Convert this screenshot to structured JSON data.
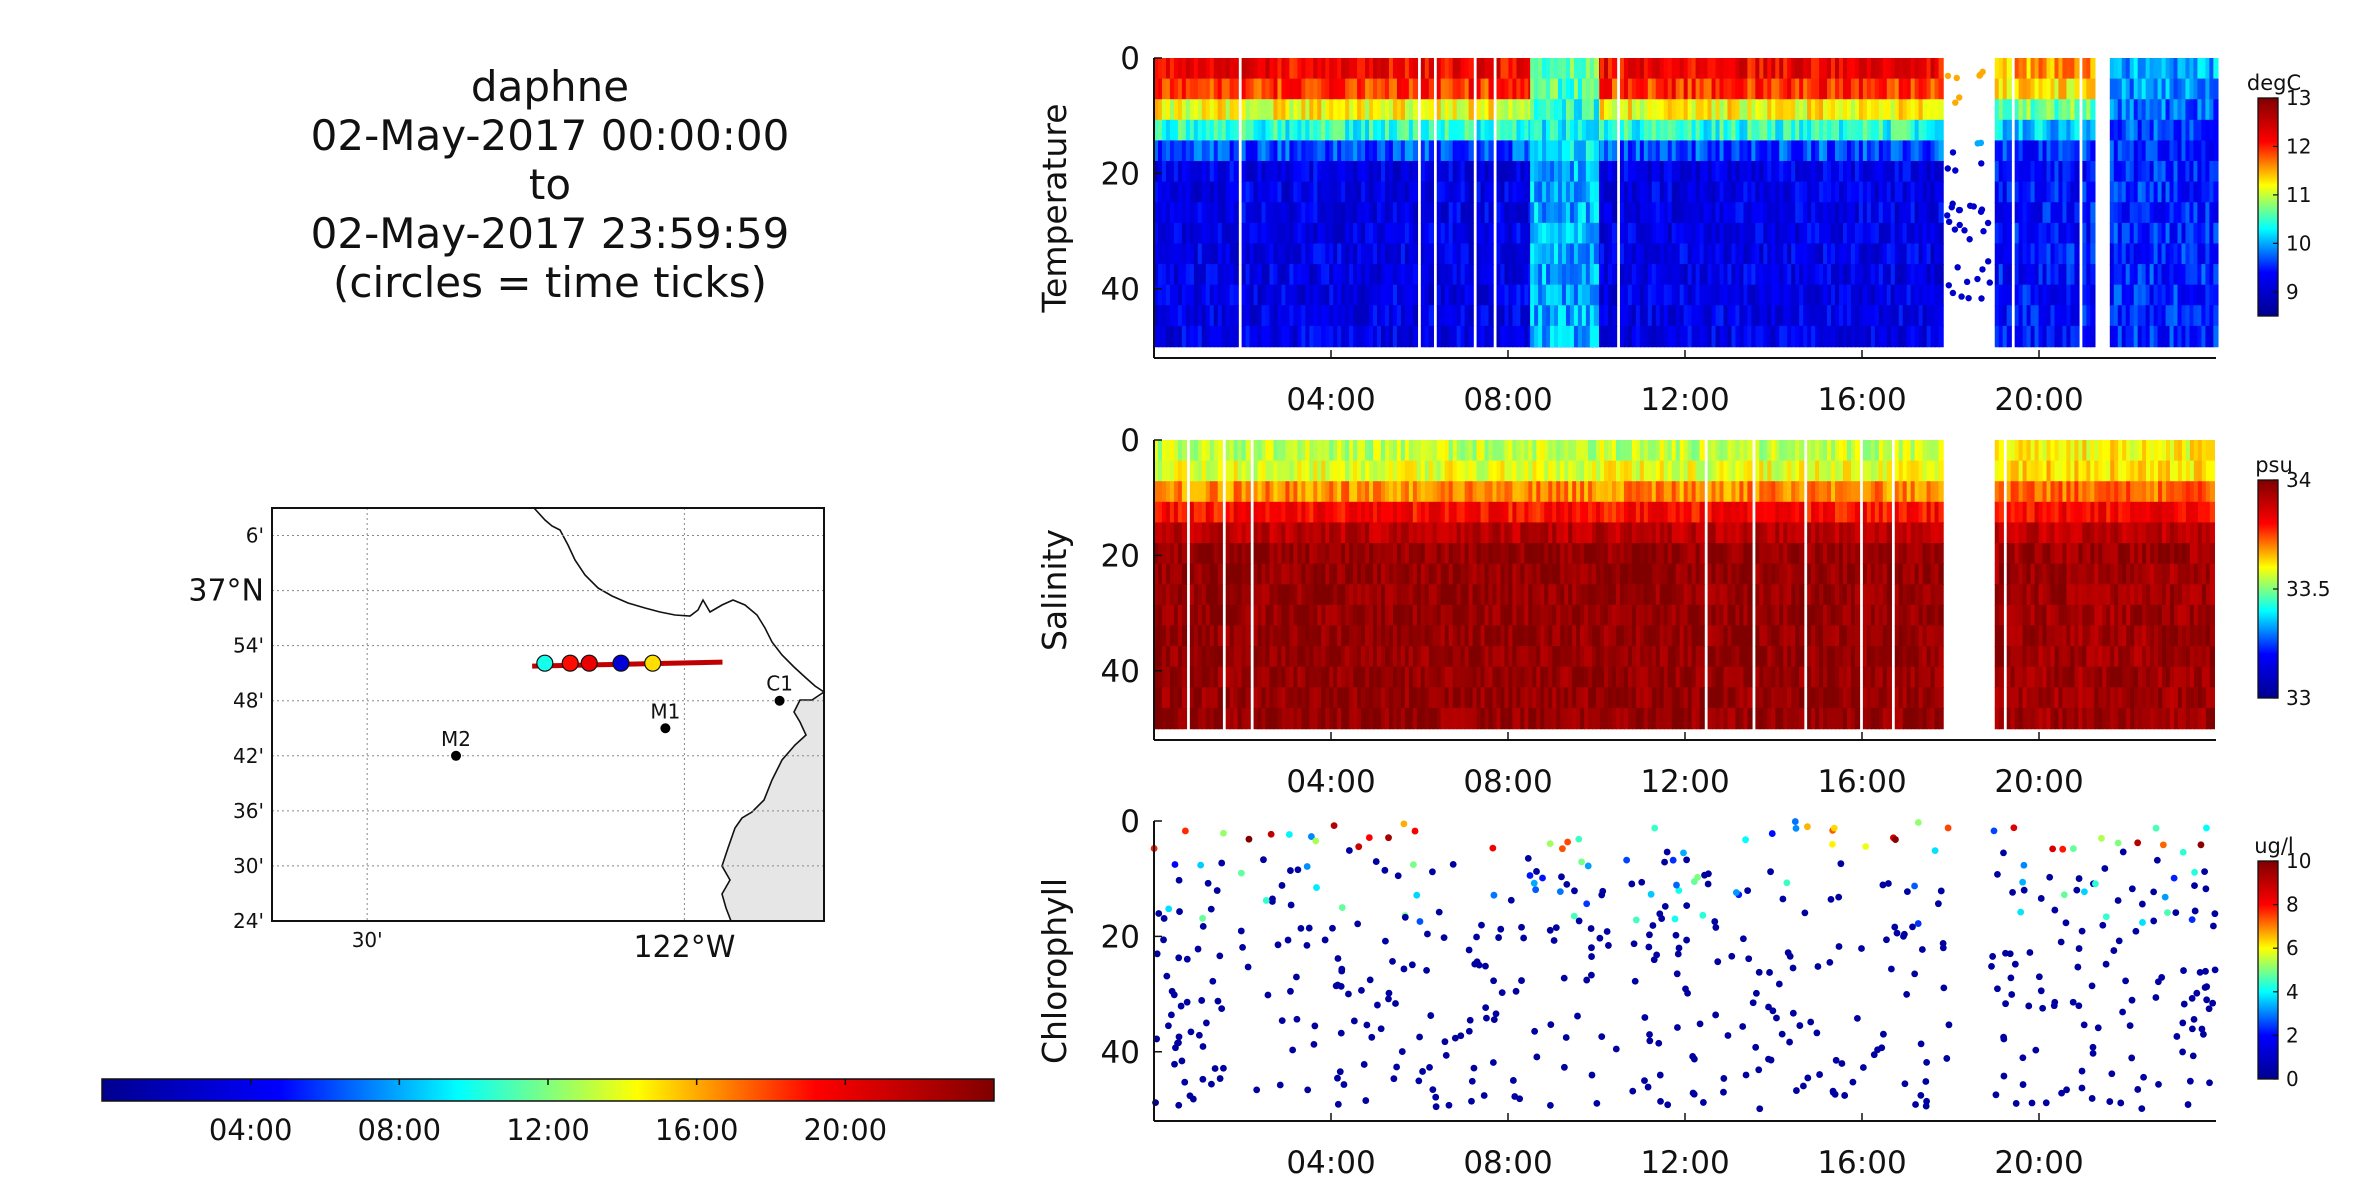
{
  "title": {
    "lines": [
      "daphne",
      "02-May-2017 00:00:00",
      "to",
      "02-May-2017 23:59:59",
      "(circles = time ticks)"
    ]
  },
  "colors": {
    "jet": [
      "#00008f",
      "#0000ff",
      "#00ffff",
      "#ffff00",
      "#ff0000",
      "#800000"
    ],
    "land": "#e5e5e5",
    "grid": "#888888"
  },
  "map": {
    "lat_tick_labels": [
      "6'",
      "37°N",
      "54'",
      "48'",
      "42'",
      "36'",
      "30'",
      "24'"
    ],
    "lon_tick_labels": [
      "30'",
      "122°W"
    ],
    "stations": [
      {
        "name": "M2",
        "lon": -122.36,
        "lat": 36.7
      },
      {
        "name": "M1",
        "lon": -122.03,
        "lat": 36.75
      },
      {
        "name": "C1",
        "lon": -121.85,
        "lat": 36.8
      }
    ],
    "track": {
      "lon_start": -122.24,
      "lon_end": -121.94,
      "lat": 36.87
    },
    "time_tick_circles": [
      {
        "lon": -122.22,
        "hour": 10.0
      },
      {
        "lon": -122.18,
        "hour": 19.0
      },
      {
        "lon": -122.15,
        "hour": 20.0
      },
      {
        "lon": -122.1,
        "hour": 3.0
      },
      {
        "lon": -122.05,
        "hour": 15.0
      }
    ]
  },
  "time_colorbar": {
    "tick_labels": [
      "04:00",
      "08:00",
      "12:00",
      "16:00",
      "20:00"
    ]
  },
  "chart_data": [
    {
      "type": "scatter",
      "ylabel": "Temperature",
      "units": "degC",
      "y_ticks": [
        0,
        20,
        40
      ],
      "ylim": [
        52,
        0
      ],
      "x_tick_labels": [
        "04:00",
        "08:00",
        "12:00",
        "16:00",
        "20:00"
      ],
      "xlim_hours": [
        0,
        24
      ],
      "colorbar": {
        "min": 8.5,
        "max": 13,
        "ticks": [
          9,
          10,
          11,
          12,
          13
        ]
      },
      "profiles": [
        {
          "t_start": 0.0,
          "t_end": 17.8,
          "max_depth": 50,
          "surface": 12.2,
          "deep": 9.2,
          "thermocline": 8
        },
        {
          "t_start": 8.5,
          "t_end": 10.0,
          "max_depth": 50,
          "surface": 10.6,
          "deep": 10.0,
          "thermocline": 10
        },
        {
          "t_start": 19.0,
          "t_end": 21.2,
          "max_depth": 50,
          "surface": 11.5,
          "deep": 9.4,
          "thermocline": 7
        },
        {
          "t_start": 21.6,
          "t_end": 24.0,
          "max_depth": 50,
          "surface": 10.0,
          "deep": 9.5,
          "thermocline": 6
        }
      ]
    },
    {
      "type": "scatter",
      "ylabel": "Salinity",
      "units": "psu",
      "y_ticks": [
        0,
        20,
        40
      ],
      "ylim": [
        52,
        0
      ],
      "x_tick_labels": [
        "04:00",
        "08:00",
        "12:00",
        "16:00",
        "20:00"
      ],
      "xlim_hours": [
        0,
        24
      ],
      "colorbar": {
        "min": 33,
        "max": 34,
        "ticks": [
          33,
          33.5,
          34
        ]
      },
      "tick_labels_text": [
        "33",
        "33.5",
        "34"
      ],
      "profiles": [
        {
          "t_start": 0.0,
          "t_end": 17.8,
          "max_depth": 50,
          "surface": 33.55,
          "deep": 33.97,
          "halocline": 8
        },
        {
          "t_start": 19.0,
          "t_end": 24.0,
          "max_depth": 50,
          "surface": 33.6,
          "deep": 33.95,
          "halocline": 8
        }
      ]
    },
    {
      "type": "scatter",
      "ylabel": "Chlorophyll",
      "units": "ug/l",
      "y_ticks": [
        0,
        20,
        40
      ],
      "ylim": [
        52,
        0
      ],
      "x_tick_labels": [
        "04:00",
        "08:00",
        "12:00",
        "16:00",
        "20:00"
      ],
      "xlim_hours": [
        0,
        24
      ],
      "colorbar": {
        "min": 0,
        "max": 10,
        "ticks": [
          0,
          2,
          4,
          6,
          8,
          10
        ]
      },
      "sample_count_description_values": {
        "surface_range_ugl": [
          2,
          10
        ],
        "deep_value_ugl": 0.3
      }
    }
  ]
}
